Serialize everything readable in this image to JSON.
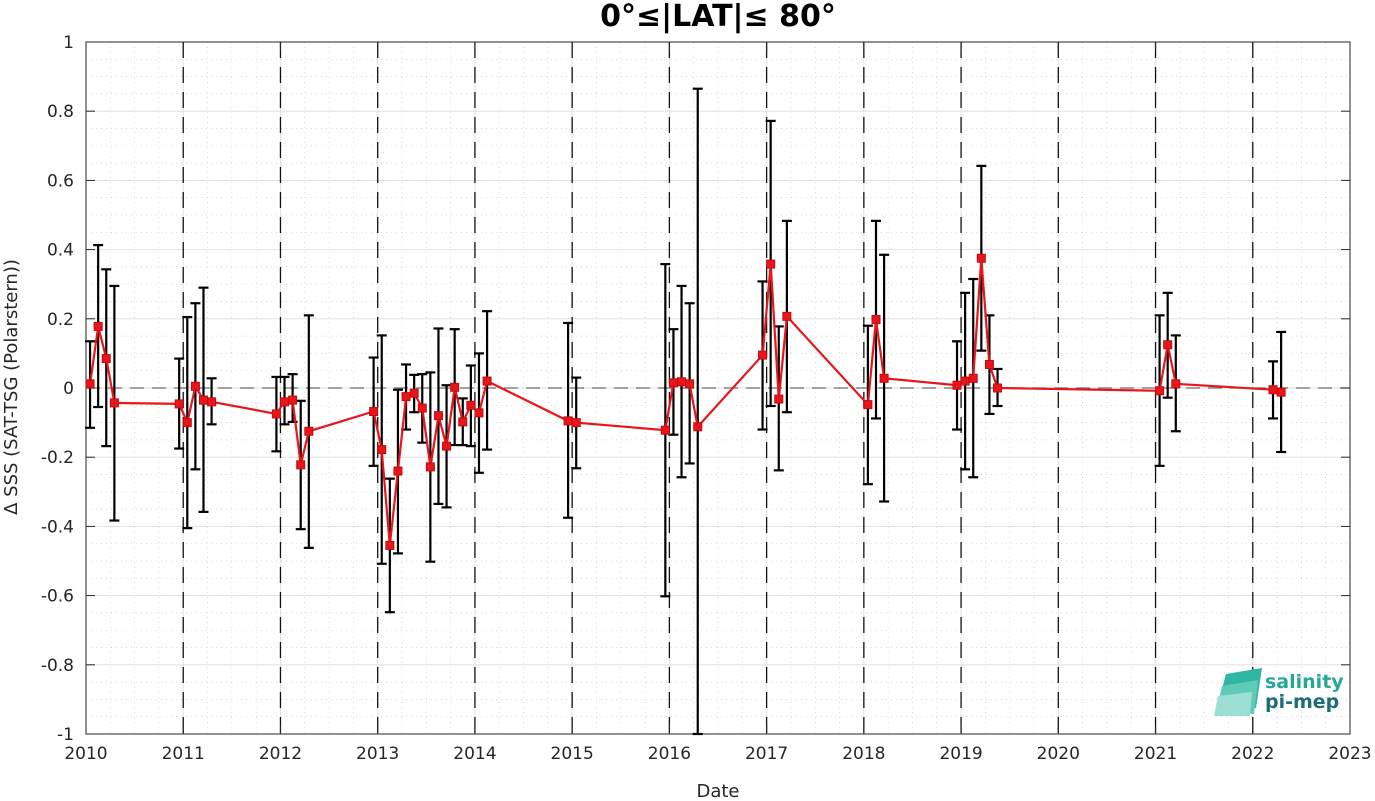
{
  "chart_data": {
    "type": "line",
    "title": "0°≤|LAT|≤ 80°",
    "xlabel": "Date",
    "ylabel": "Δ SSS (SAT-TSG (Polarstern))",
    "xlim": [
      2010,
      2023
    ],
    "ylim": [
      -1,
      1
    ],
    "x_ticks": [
      "2010",
      "2011",
      "2012",
      "2013",
      "2014",
      "2015",
      "2016",
      "2017",
      "2018",
      "2019",
      "2020",
      "2021",
      "2022",
      "2023"
    ],
    "y_ticks": [
      "-1",
      "-0.8",
      "-0.6",
      "-0.4",
      "-0.2",
      "0",
      "0.2",
      "0.4",
      "0.6",
      "0.8",
      "1"
    ],
    "grid": true,
    "minor_grid": true,
    "year_lines": [
      2011,
      2012,
      2013,
      2014,
      2015,
      2016,
      2017,
      2018,
      2019,
      2020,
      2021,
      2022
    ],
    "zero_line": 0,
    "series": [
      {
        "color": "#e8161b",
        "marker": "square",
        "errorbar_color": "#000000",
        "segments": [
          [
            {
              "x": "2010-01",
              "y": 0.012,
              "lo": -0.115,
              "hi": 0.135
            },
            {
              "x": "2010-02",
              "y": 0.178,
              "lo": -0.055,
              "hi": 0.413
            },
            {
              "x": "2010-03",
              "y": 0.085,
              "lo": -0.168,
              "hi": 0.343
            },
            {
              "x": "2010-04",
              "y": -0.043,
              "lo": -0.383,
              "hi": 0.295
            },
            {
              "x": "2010-12",
              "y": -0.046,
              "lo": -0.175,
              "hi": 0.085
            },
            {
              "x": "2011-01",
              "y": -0.1,
              "lo": -0.405,
              "hi": 0.205
            },
            {
              "x": "2011-02",
              "y": 0.005,
              "lo": -0.235,
              "hi": 0.245
            },
            {
              "x": "2011-03",
              "y": -0.035,
              "lo": -0.358,
              "hi": 0.29
            },
            {
              "x": "2011-04",
              "y": -0.04,
              "lo": -0.105,
              "hi": 0.028
            },
            {
              "x": "2011-12",
              "y": -0.075,
              "lo": -0.183,
              "hi": 0.032
            },
            {
              "x": "2012-01",
              "y": -0.04,
              "lo": -0.105,
              "hi": 0.032
            },
            {
              "x": "2012-02",
              "y": -0.035,
              "lo": -0.098,
              "hi": 0.04
            },
            {
              "x": "2012-03",
              "y": -0.222,
              "lo": -0.408,
              "hi": -0.037
            },
            {
              "x": "2012-04",
              "y": -0.125,
              "lo": -0.462,
              "hi": 0.21
            },
            {
              "x": "2012-12",
              "y": -0.068,
              "lo": -0.225,
              "hi": 0.088
            },
            {
              "x": "2013-01",
              "y": -0.178,
              "lo": -0.508,
              "hi": 0.152
            },
            {
              "x": "2013-02",
              "y": -0.455,
              "lo": -0.648,
              "hi": -0.262
            },
            {
              "x": "2013-03",
              "y": -0.24,
              "lo": -0.478,
              "hi": -0.005
            },
            {
              "x": "2013-04",
              "y": -0.025,
              "lo": -0.12,
              "hi": 0.068
            },
            {
              "x": "2013-05",
              "y": -0.015,
              "lo": -0.07,
              "hi": 0.038
            },
            {
              "x": "2013-06",
              "y": -0.058,
              "lo": -0.158,
              "hi": 0.04
            },
            {
              "x": "2013-07",
              "y": -0.228,
              "lo": -0.502,
              "hi": 0.045
            },
            {
              "x": "2013-08",
              "y": -0.08,
              "lo": -0.335,
              "hi": 0.172
            },
            {
              "x": "2013-09",
              "y": -0.168,
              "lo": -0.345,
              "hi": 0.008
            },
            {
              "x": "2013-10",
              "y": 0.002,
              "lo": -0.165,
              "hi": 0.17
            },
            {
              "x": "2013-11",
              "y": -0.098,
              "lo": -0.165,
              "hi": -0.03
            },
            {
              "x": "2013-12",
              "y": -0.05,
              "lo": -0.168,
              "hi": 0.065
            },
            {
              "x": "2014-01",
              "y": -0.072,
              "lo": -0.245,
              "hi": 0.1
            },
            {
              "x": "2014-02",
              "y": 0.02,
              "lo": -0.178,
              "hi": 0.222
            },
            {
              "x": "2014-12",
              "y": -0.095,
              "lo": -0.375,
              "hi": 0.188
            },
            {
              "x": "2015-01",
              "y": -0.1,
              "lo": -0.232,
              "hi": 0.03
            },
            {
              "x": "2015-12",
              "y": -0.122,
              "lo": -0.602,
              "hi": 0.358
            },
            {
              "x": "2016-01",
              "y": 0.015,
              "lo": -0.135,
              "hi": 0.17
            },
            {
              "x": "2016-02",
              "y": 0.018,
              "lo": -0.258,
              "hi": 0.295
            },
            {
              "x": "2016-03",
              "y": 0.012,
              "lo": -0.218,
              "hi": 0.245
            },
            {
              "x": "2016-04",
              "y": -0.112,
              "lo": -1.0,
              "hi": 0.865
            },
            {
              "x": "2016-12",
              "y": 0.095,
              "lo": -0.12,
              "hi": 0.308
            },
            {
              "x": "2017-01",
              "y": 0.358,
              "lo": -0.052,
              "hi": 0.772
            },
            {
              "x": "2017-02",
              "y": -0.032,
              "lo": -0.238,
              "hi": 0.178
            },
            {
              "x": "2017-03",
              "y": 0.207,
              "lo": -0.07,
              "hi": 0.483
            },
            {
              "x": "2018-01",
              "y": -0.048,
              "lo": -0.278,
              "hi": 0.18
            },
            {
              "x": "2018-02",
              "y": 0.198,
              "lo": -0.088,
              "hi": 0.483
            },
            {
              "x": "2018-03",
              "y": 0.028,
              "lo": -0.328,
              "hi": 0.385
            },
            {
              "x": "2018-12",
              "y": 0.008,
              "lo": -0.12,
              "hi": 0.135
            },
            {
              "x": "2019-01",
              "y": 0.02,
              "lo": -0.235,
              "hi": 0.275
            },
            {
              "x": "2019-02",
              "y": 0.028,
              "lo": -0.258,
              "hi": 0.315
            },
            {
              "x": "2019-03",
              "y": 0.375,
              "lo": 0.108,
              "hi": 0.642
            },
            {
              "x": "2019-04",
              "y": 0.068,
              "lo": -0.075,
              "hi": 0.21
            },
            {
              "x": "2019-05",
              "y": 0.0,
              "lo": -0.052,
              "hi": 0.055
            },
            {
              "x": "2021-01",
              "y": -0.008,
              "lo": -0.225,
              "hi": 0.21
            },
            {
              "x": "2021-02",
              "y": 0.125,
              "lo": -0.028,
              "hi": 0.275
            },
            {
              "x": "2021-03",
              "y": 0.012,
              "lo": -0.125,
              "hi": 0.152
            },
            {
              "x": "2022-03",
              "y": -0.005,
              "lo": -0.088,
              "hi": 0.077
            },
            {
              "x": "2022-04",
              "y": -0.012,
              "lo": -0.185,
              "hi": 0.162
            }
          ]
        ]
      }
    ]
  },
  "logo": {
    "line1": "salinity",
    "line2": "pi-mep"
  }
}
